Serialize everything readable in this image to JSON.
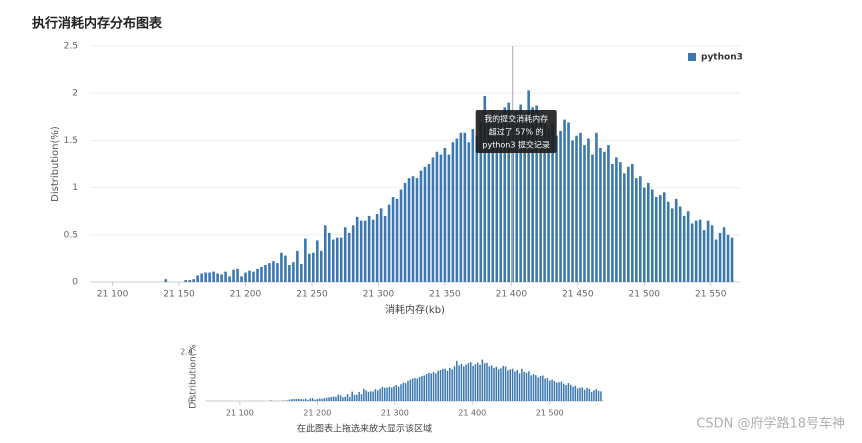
{
  "watermark": "CSDN @府学路18号车神",
  "chart_data": [
    {
      "type": "bar",
      "title": "执行消耗内存分布图表",
      "x_label": "消耗内存(kb)",
      "y_label": "Distribution(%)",
      "x": [
        21140,
        21143,
        21146,
        21149,
        21152,
        21155,
        21158,
        21161,
        21164,
        21167,
        21170,
        21173,
        21176,
        21179,
        21182,
        21185,
        21188,
        21191,
        21194,
        21197,
        21200,
        21203,
        21206,
        21209,
        21212,
        21215,
        21218,
        21221,
        21224,
        21227,
        21230,
        21233,
        21236,
        21239,
        21242,
        21245,
        21248,
        21251,
        21254,
        21257,
        21260,
        21263,
        21266,
        21269,
        21272,
        21275,
        21278,
        21281,
        21284,
        21287,
        21290,
        21293,
        21296,
        21299,
        21302,
        21305,
        21308,
        21311,
        21314,
        21317,
        21320,
        21323,
        21326,
        21329,
        21332,
        21335,
        21338,
        21341,
        21344,
        21347,
        21350,
        21353,
        21356,
        21359,
        21362,
        21365,
        21368,
        21371,
        21374,
        21377,
        21380,
        21383,
        21386,
        21389,
        21392,
        21395,
        21398,
        21401,
        21404,
        21407,
        21410,
        21413,
        21416,
        21419,
        21422,
        21425,
        21428,
        21431,
        21434,
        21437,
        21440,
        21443,
        21446,
        21449,
        21452,
        21455,
        21458,
        21461,
        21464,
        21467,
        21470,
        21473,
        21476,
        21479,
        21482,
        21485,
        21488,
        21491,
        21494,
        21497,
        21500,
        21503,
        21506,
        21509,
        21512,
        21515,
        21518,
        21521,
        21524,
        21527,
        21530,
        21533,
        21536,
        21539,
        21542,
        21545,
        21548,
        21551,
        21554,
        21557,
        21560,
        21563,
        21566
      ],
      "series": [
        {
          "name": "python3",
          "color": "#3b78b0",
          "values": [
            0.03,
            0,
            0,
            0,
            0,
            0.02,
            0.02,
            0.03,
            0.07,
            0.09,
            0.1,
            0.1,
            0.11,
            0.09,
            0.08,
            0.11,
            0.06,
            0.13,
            0.14,
            0.06,
            0.1,
            0.12,
            0.11,
            0.14,
            0.16,
            0.18,
            0.2,
            0.22,
            0.2,
            0.31,
            0.28,
            0.18,
            0.21,
            0.33,
            0.19,
            0.46,
            0.3,
            0.31,
            0.44,
            0.33,
            0.6,
            0.52,
            0.45,
            0.47,
            0.47,
            0.58,
            0.52,
            0.6,
            0.69,
            0.65,
            0.65,
            0.7,
            0.66,
            0.72,
            0.78,
            0.7,
            0.82,
            0.9,
            0.88,
            0.98,
            1.05,
            1.1,
            1.12,
            1.1,
            1.18,
            1.22,
            1.25,
            1.32,
            1.38,
            1.35,
            1.42,
            1.35,
            1.48,
            1.52,
            1.58,
            1.58,
            1.48,
            1.62,
            1.55,
            1.7,
            1.97,
            1.75,
            1.82,
            1.7,
            1.78,
            1.85,
            1.9,
            1.72,
            1.8,
            1.88,
            1.78,
            2.03,
            1.85,
            1.87,
            1.7,
            1.75,
            1.62,
            1.68,
            1.55,
            1.6,
            1.72,
            1.69,
            1.5,
            1.55,
            1.58,
            1.45,
            1.52,
            1.35,
            1.58,
            1.42,
            1.38,
            1.45,
            1.25,
            1.32,
            1.27,
            1.15,
            1.22,
            1.25,
            1.1,
            1.12,
            1.0,
            1.05,
            0.98,
            0.9,
            0.92,
            0.95,
            0.85,
            0.78,
            0.88,
            0.8,
            0.7,
            0.75,
            0.62,
            0.65,
            0.66,
            0.55,
            0.65,
            0.6,
            0.45,
            0.52,
            0.58,
            0.5,
            0.47
          ]
        }
      ],
      "xlim": [
        21083,
        21572
      ],
      "ylim": [
        0,
        2.5
      ],
      "xticks": [
        {
          "value": 21100,
          "label": "21 100"
        },
        {
          "value": 21150,
          "label": "21 150"
        },
        {
          "value": 21200,
          "label": "21 200"
        },
        {
          "value": 21250,
          "label": "21 250"
        },
        {
          "value": 21300,
          "label": "21 300"
        },
        {
          "value": 21350,
          "label": "21 350"
        },
        {
          "value": 21400,
          "label": "21 400"
        },
        {
          "value": 21450,
          "label": "21 450"
        },
        {
          "value": 21500,
          "label": "21 500"
        },
        {
          "value": 21550,
          "label": "21 550"
        }
      ],
      "yticks": [
        0,
        0.5,
        1,
        1.5,
        2,
        2.5
      ],
      "grid": true,
      "legend": "top-right",
      "marker_x": 21401,
      "tooltip": [
        "我的提交消耗内存",
        "超过了 57% 的",
        "python3 提交记录"
      ]
    },
    {
      "type": "bar",
      "x_label": "在此图表上拖选来放大显示该区域",
      "y_label": "Distribution(%",
      "x": [
        21140,
        21143,
        21146,
        21149,
        21152,
        21155,
        21158,
        21161,
        21164,
        21167,
        21170,
        21173,
        21176,
        21179,
        21182,
        21185,
        21188,
        21191,
        21194,
        21197,
        21200,
        21203,
        21206,
        21209,
        21212,
        21215,
        21218,
        21221,
        21224,
        21227,
        21230,
        21233,
        21236,
        21239,
        21242,
        21245,
        21248,
        21251,
        21254,
        21257,
        21260,
        21263,
        21266,
        21269,
        21272,
        21275,
        21278,
        21281,
        21284,
        21287,
        21290,
        21293,
        21296,
        21299,
        21302,
        21305,
        21308,
        21311,
        21314,
        21317,
        21320,
        21323,
        21326,
        21329,
        21332,
        21335,
        21338,
        21341,
        21344,
        21347,
        21350,
        21353,
        21356,
        21359,
        21362,
        21365,
        21368,
        21371,
        21374,
        21377,
        21380,
        21383,
        21386,
        21389,
        21392,
        21395,
        21398,
        21401,
        21404,
        21407,
        21410,
        21413,
        21416,
        21419,
        21422,
        21425,
        21428,
        21431,
        21434,
        21437,
        21440,
        21443,
        21446,
        21449,
        21452,
        21455,
        21458,
        21461,
        21464,
        21467,
        21470,
        21473,
        21476,
        21479,
        21482,
        21485,
        21488,
        21491,
        21494,
        21497,
        21500,
        21503,
        21506,
        21509,
        21512,
        21515,
        21518,
        21521,
        21524,
        21527,
        21530,
        21533,
        21536,
        21539,
        21542,
        21545,
        21548,
        21551,
        21554,
        21557,
        21560,
        21563,
        21566
      ],
      "series": [
        {
          "color": "#3b78b0",
          "values": [
            0.03,
            0,
            0,
            0,
            0,
            0.02,
            0.02,
            0.03,
            0.07,
            0.09,
            0.1,
            0.1,
            0.11,
            0.09,
            0.08,
            0.11,
            0.06,
            0.13,
            0.14,
            0.06,
            0.1,
            0.12,
            0.11,
            0.14,
            0.16,
            0.18,
            0.2,
            0.22,
            0.2,
            0.31,
            0.28,
            0.18,
            0.21,
            0.33,
            0.19,
            0.46,
            0.3,
            0.31,
            0.44,
            0.33,
            0.6,
            0.52,
            0.45,
            0.47,
            0.47,
            0.58,
            0.52,
            0.6,
            0.69,
            0.65,
            0.65,
            0.7,
            0.66,
            0.72,
            0.78,
            0.7,
            0.82,
            0.9,
            0.88,
            0.98,
            1.05,
            1.1,
            1.12,
            1.1,
            1.18,
            1.22,
            1.25,
            1.32,
            1.38,
            1.35,
            1.42,
            1.35,
            1.48,
            1.52,
            1.58,
            1.58,
            1.48,
            1.62,
            1.55,
            1.7,
            1.97,
            1.75,
            1.82,
            1.7,
            1.78,
            1.85,
            1.9,
            1.72,
            1.8,
            1.88,
            1.78,
            2.03,
            1.85,
            1.87,
            1.7,
            1.75,
            1.62,
            1.68,
            1.55,
            1.6,
            1.72,
            1.69,
            1.5,
            1.55,
            1.58,
            1.45,
            1.52,
            1.35,
            1.58,
            1.42,
            1.38,
            1.45,
            1.25,
            1.32,
            1.27,
            1.15,
            1.22,
            1.25,
            1.1,
            1.12,
            1.0,
            1.05,
            0.98,
            0.9,
            0.92,
            0.95,
            0.85,
            0.78,
            0.88,
            0.8,
            0.7,
            0.75,
            0.62,
            0.65,
            0.66,
            0.55,
            0.65,
            0.6,
            0.45,
            0.52,
            0.58,
            0.5,
            0.47
          ]
        }
      ],
      "xlim": [
        21055,
        21570
      ],
      "ylim": [
        0,
        2.4
      ],
      "xticks": [
        {
          "value": 21100,
          "label": "21 100"
        },
        {
          "value": 21200,
          "label": "21 200"
        },
        {
          "value": 21300,
          "label": "21 300"
        },
        {
          "value": 21400,
          "label": "21 400"
        },
        {
          "value": 21500,
          "label": "21 500"
        }
      ],
      "yticks": [
        0,
        2.4
      ],
      "grid": false
    }
  ]
}
